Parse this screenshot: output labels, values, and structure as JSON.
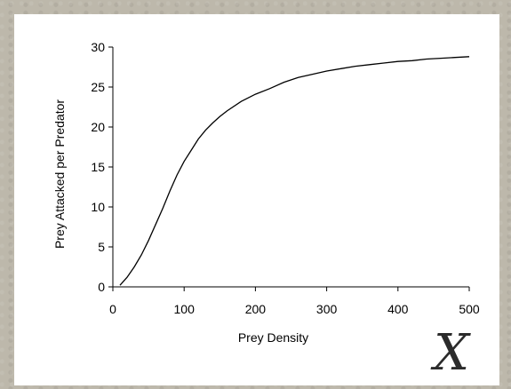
{
  "chart_data": {
    "type": "line",
    "title": "",
    "xlabel": "Prey Density",
    "ylabel": "Prey Attacked per Predator",
    "xlim": [
      0,
      500
    ],
    "ylim": [
      0,
      30
    ],
    "xticks": [
      0,
      100,
      200,
      300,
      400,
      500
    ],
    "yticks": [
      0,
      5,
      10,
      15,
      20,
      25,
      30
    ],
    "grid": false,
    "series": [
      {
        "x": [
          10,
          20,
          30,
          40,
          50,
          60,
          70,
          80,
          90,
          100,
          110,
          120,
          130,
          140,
          150,
          160,
          180,
          200,
          220,
          240,
          260,
          280,
          300,
          320,
          340,
          360,
          380,
          400,
          420,
          440,
          460,
          480,
          500
        ],
        "values": [
          0.2,
          1.2,
          2.5,
          4.0,
          5.8,
          7.8,
          9.8,
          12.0,
          14.0,
          15.7,
          17.1,
          18.5,
          19.6,
          20.5,
          21.3,
          22.0,
          23.2,
          24.1,
          24.8,
          25.6,
          26.2,
          26.6,
          27.0,
          27.3,
          27.6,
          27.8,
          28.0,
          28.2,
          28.3,
          28.5,
          28.6,
          28.7,
          28.8
        ]
      }
    ]
  },
  "corner_label": "X"
}
